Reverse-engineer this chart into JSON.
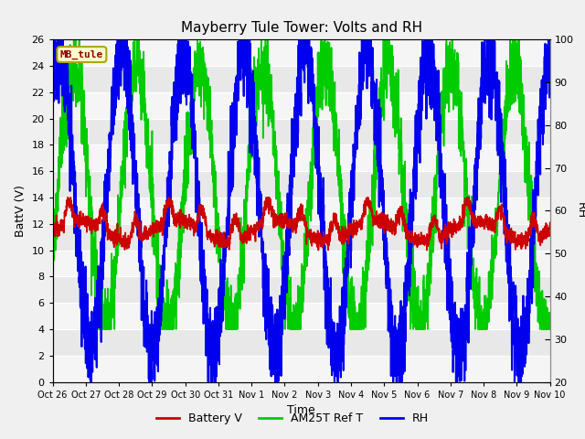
{
  "title": "Mayberry Tule Tower: Volts and RH",
  "xlabel": "Time",
  "ylabel_left": "BattV (V)",
  "ylabel_right": "RH",
  "station_label": "MB_tule",
  "ylim_left": [
    0,
    26
  ],
  "ylim_right": [
    20,
    100
  ],
  "yticks_left": [
    0,
    2,
    4,
    6,
    8,
    10,
    12,
    14,
    16,
    18,
    20,
    22,
    24,
    26
  ],
  "yticks_right": [
    20,
    30,
    40,
    50,
    60,
    70,
    80,
    90,
    100
  ],
  "bg_color": "#f0f0f0",
  "plot_bg_color": "#e8e8e8",
  "stripe_light_color": "#f5f5f5",
  "battery_color": "#cc0000",
  "am25t_color": "#00cc00",
  "rh_color": "#0000ee",
  "legend_labels": [
    "Battery V",
    "AM25T Ref T",
    "RH"
  ],
  "tick_labels": [
    "Oct 26",
    "Oct 27",
    "Oct 28",
    "Oct 29",
    "Oct 30",
    "Oct 31",
    "Nov 1",
    "Nov 2",
    "Nov 3",
    "Nov 4",
    "Nov 5",
    "Nov 6",
    "Nov 7",
    "Nov 8",
    "Nov 9",
    "Nov 10"
  ],
  "n_points": 3000,
  "seed": 12345
}
